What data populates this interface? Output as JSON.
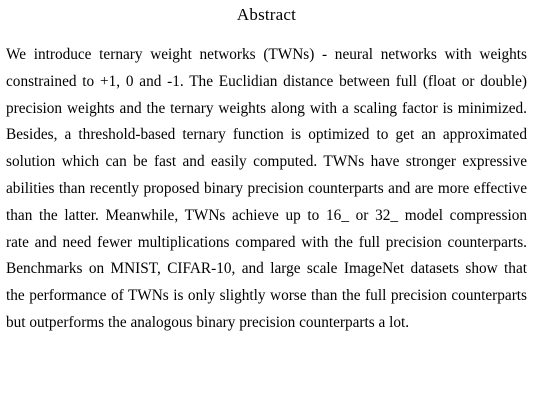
{
  "abstract": {
    "heading": "Abstract",
    "lines": [
      "We introduce ternary weight networks (TWNs) - neural networks with weights",
      "constrained to +1, 0 and -1. The Euclidian distance between full (float or double)",
      "precision weights and the ternary weights along with a scaling factor is minimized.",
      "Besides, a threshold-based ternary function is optimized to get an approximated",
      "solution which can be fast and easily computed. TWNs have stronger expressive",
      "abilities than recently proposed binary precision counterparts and are more effective",
      "than the latter. Meanwhile, TWNs achieve up to 16_ or 32_ model compression",
      "rate and need fewer multiplications compared with the full precision counterparts.",
      "Benchmarks on MNIST, CIFAR-10, and large scale ImageNet datasets show that",
      "the performance of TWNs is only slightly worse than the full precision counterparts",
      "but outperforms the analogous binary precision counterparts a lot."
    ]
  }
}
